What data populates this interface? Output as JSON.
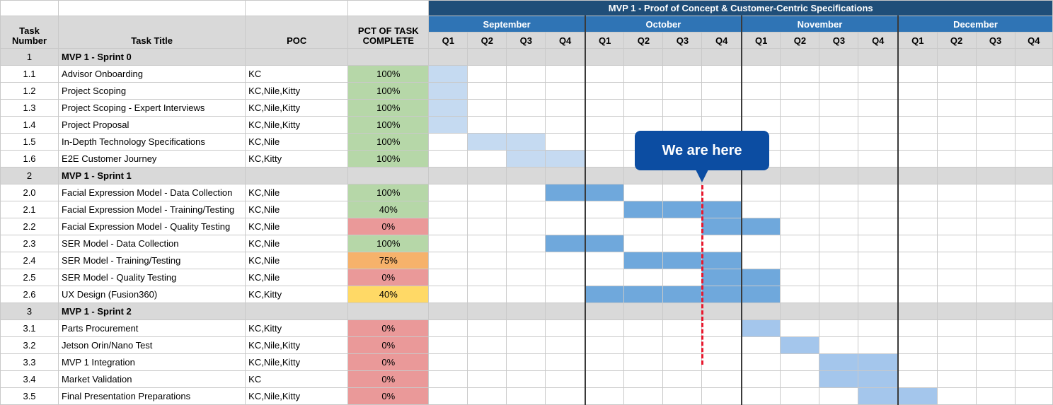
{
  "header": {
    "task_number": "Task\nNumber",
    "task_title": "Task Title",
    "poc": "POC",
    "pct": "PCT OF TASK\nCOMPLETE",
    "gantt_title": "MVP 1 - Proof of Concept & Customer-Centric Specifications",
    "months": [
      "September",
      "October",
      "November",
      "December"
    ],
    "quarters": [
      "Q1",
      "Q2",
      "Q3",
      "Q4"
    ]
  },
  "callout": {
    "text": "We are here"
  },
  "colors": {
    "sprint_bg": "#d9d9d9",
    "title_bg": "#1f4e79",
    "month_bg": "#2f74b5",
    "complete_green": "#b6d7a8",
    "zero_red": "#ea9999",
    "orange": "#f6b26b",
    "yellow": "#ffd966",
    "bar_light": "#c5daf1",
    "bar_mid": "#6fa8dc",
    "bar_soft": "#a4c6ec",
    "marker_red": "#e8182e",
    "callout_bg": "#0c4da2"
  },
  "rows": [
    {
      "num": "1",
      "title": "MVP 1 - Sprint 0",
      "poc": "",
      "pct": "",
      "pct_color": "",
      "sprint": true,
      "start": 0,
      "end": -1,
      "shade": ""
    },
    {
      "num": "1.1",
      "title": "Advisor Onboarding",
      "poc": "KC",
      "pct": "100%",
      "pct_color": "#b6d7a8",
      "sprint": false,
      "start": 0,
      "end": 0,
      "shade": "g1"
    },
    {
      "num": "1.2",
      "title": "Project Scoping",
      "poc": "KC,Nile,Kitty",
      "pct": "100%",
      "pct_color": "#b6d7a8",
      "sprint": false,
      "start": 0,
      "end": 0,
      "shade": "g1"
    },
    {
      "num": "1.3",
      "title": "Project Scoping - Expert Interviews",
      "poc": "KC,Nile,Kitty",
      "pct": "100%",
      "pct_color": "#b6d7a8",
      "sprint": false,
      "start": 0,
      "end": 0,
      "shade": "g1"
    },
    {
      "num": "1.4",
      "title": "Project Proposal",
      "poc": "KC,Nile,Kitty",
      "pct": "100%",
      "pct_color": "#b6d7a8",
      "sprint": false,
      "start": 0,
      "end": 0,
      "shade": "g1"
    },
    {
      "num": "1.5",
      "title": "In-Depth Technology Specifications",
      "poc": "KC,Nile",
      "pct": "100%",
      "pct_color": "#b6d7a8",
      "sprint": false,
      "start": 1,
      "end": 2,
      "shade": "g1"
    },
    {
      "num": "1.6",
      "title": "E2E Customer Journey",
      "poc": "KC,Kitty",
      "pct": "100%",
      "pct_color": "#b6d7a8",
      "sprint": false,
      "start": 2,
      "end": 3,
      "shade": "g1"
    },
    {
      "num": "2",
      "title": "MVP 1 - Sprint 1",
      "poc": "",
      "pct": "",
      "pct_color": "",
      "sprint": true,
      "start": 0,
      "end": -1,
      "shade": ""
    },
    {
      "num": "2.0",
      "title": "Facial Expression Model - Data Collection",
      "poc": "KC,Nile",
      "pct": "100%",
      "pct_color": "#b6d7a8",
      "sprint": false,
      "start": 3,
      "end": 4,
      "shade": "g2"
    },
    {
      "num": "2.1",
      "title": "Facial Expression Model - Training/Testing",
      "poc": "KC,Nile",
      "pct": "40%",
      "pct_color": "#b6d7a8",
      "sprint": false,
      "start": 5,
      "end": 7,
      "shade": "g2"
    },
    {
      "num": "2.2",
      "title": "Facial Expression Model - Quality Testing",
      "poc": "KC,Nile",
      "pct": "0%",
      "pct_color": "#ea9999",
      "sprint": false,
      "start": 7,
      "end": 8,
      "shade": "g2"
    },
    {
      "num": "2.3",
      "title": "SER Model - Data Collection",
      "poc": "KC,Nile",
      "pct": "100%",
      "pct_color": "#b6d7a8",
      "sprint": false,
      "start": 3,
      "end": 4,
      "shade": "g2"
    },
    {
      "num": "2.4",
      "title": "SER Model - Training/Testing",
      "poc": "KC,Nile",
      "pct": "75%",
      "pct_color": "#f6b26b",
      "sprint": false,
      "start": 5,
      "end": 7,
      "shade": "g2"
    },
    {
      "num": "2.5",
      "title": "SER Model - Quality Testing",
      "poc": "KC,Nile",
      "pct": "0%",
      "pct_color": "#ea9999",
      "sprint": false,
      "start": 7,
      "end": 8,
      "shade": "g2"
    },
    {
      "num": "2.6",
      "title": "UX Design (Fusion360)",
      "poc": "KC,Kitty",
      "pct": "40%",
      "pct_color": "#ffd966",
      "sprint": false,
      "start": 4,
      "end": 8,
      "shade": "g2"
    },
    {
      "num": "3",
      "title": "MVP 1 - Sprint 2",
      "poc": "",
      "pct": "",
      "pct_color": "",
      "sprint": true,
      "start": 0,
      "end": -1,
      "shade": ""
    },
    {
      "num": "3.1",
      "title": "Parts Procurement",
      "poc": "KC,Kitty",
      "pct": "0%",
      "pct_color": "#ea9999",
      "sprint": false,
      "start": 8,
      "end": 8,
      "shade": "g3"
    },
    {
      "num": "3.2",
      "title": "Jetson Orin/Nano Test",
      "poc": "KC,Nile,Kitty",
      "pct": "0%",
      "pct_color": "#ea9999",
      "sprint": false,
      "start": 9,
      "end": 9,
      "shade": "g3"
    },
    {
      "num": "3.3",
      "title": "MVP 1 Integration",
      "poc": "KC,Nile,Kitty",
      "pct": "0%",
      "pct_color": "#ea9999",
      "sprint": false,
      "start": 10,
      "end": 11,
      "shade": "g3"
    },
    {
      "num": "3.4",
      "title": "Market Validation",
      "poc": "KC",
      "pct": "0%",
      "pct_color": "#ea9999",
      "sprint": false,
      "start": 10,
      "end": 11,
      "shade": "g3"
    },
    {
      "num": "3.5",
      "title": "Final Presentation Preparations",
      "poc": "KC,Nile,Kitty",
      "pct": "0%",
      "pct_color": "#ea9999",
      "sprint": false,
      "start": 11,
      "end": 12,
      "shade": "g3"
    }
  ]
}
